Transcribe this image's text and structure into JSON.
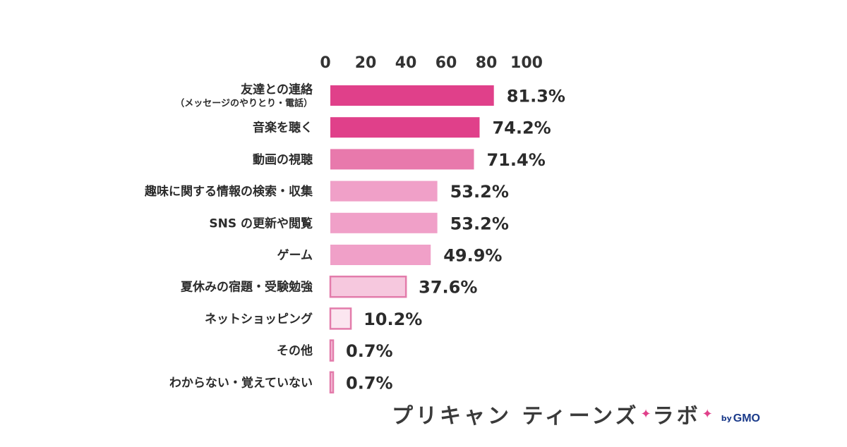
{
  "chart_data": {
    "type": "bar",
    "orientation": "horizontal",
    "title": "",
    "xlabel": "",
    "ylabel": "",
    "xlim": [
      0,
      100
    ],
    "ticks": [
      "0",
      "20",
      "40",
      "60",
      "80",
      "100"
    ],
    "tick_values": [
      0,
      20,
      40,
      60,
      80,
      100
    ],
    "grid": false,
    "value_suffix": "%",
    "categories": [
      {
        "label": "友達との連絡",
        "sub": "（メッセージのやりとり・電話）"
      },
      {
        "label": "音楽を聴く",
        "sub": ""
      },
      {
        "label": "動画の視聴",
        "sub": ""
      },
      {
        "label": "趣味に関する情報の検索・収集",
        "sub": ""
      },
      {
        "label": "SNS の更新や閲覧",
        "sub": ""
      },
      {
        "label": "ゲーム",
        "sub": ""
      },
      {
        "label": "夏休みの宿題・受験勉強",
        "sub": ""
      },
      {
        "label": "ネットショッピング",
        "sub": ""
      },
      {
        "label": "その他",
        "sub": ""
      },
      {
        "label": "わからない・覚えていない",
        "sub": ""
      }
    ],
    "values": [
      81.3,
      74.2,
      71.4,
      53.2,
      53.2,
      49.9,
      37.6,
      10.2,
      0.7,
      0.7
    ],
    "value_labels": [
      "81.3%",
      "74.2%",
      "71.4%",
      "53.2%",
      "53.2%",
      "49.9%",
      "37.6%",
      "10.2%",
      "0.7%",
      "0.7%"
    ],
    "colors": {
      "fill": [
        "#e0408a",
        "#e0408a",
        "#e879ac",
        "#f0a0c8",
        "#f0a0c8",
        "#f0a0c8",
        "#f6c8de",
        "#fbe6f0",
        "#f6c8de",
        "#f6c8de"
      ],
      "stroke": "#e37cab"
    }
  },
  "brand": {
    "text_main": "プリキャン ティーンズ",
    "text_lab": "ラボ",
    "by": "by",
    "company": "GMO",
    "sparkle_color": "#e0408a"
  }
}
